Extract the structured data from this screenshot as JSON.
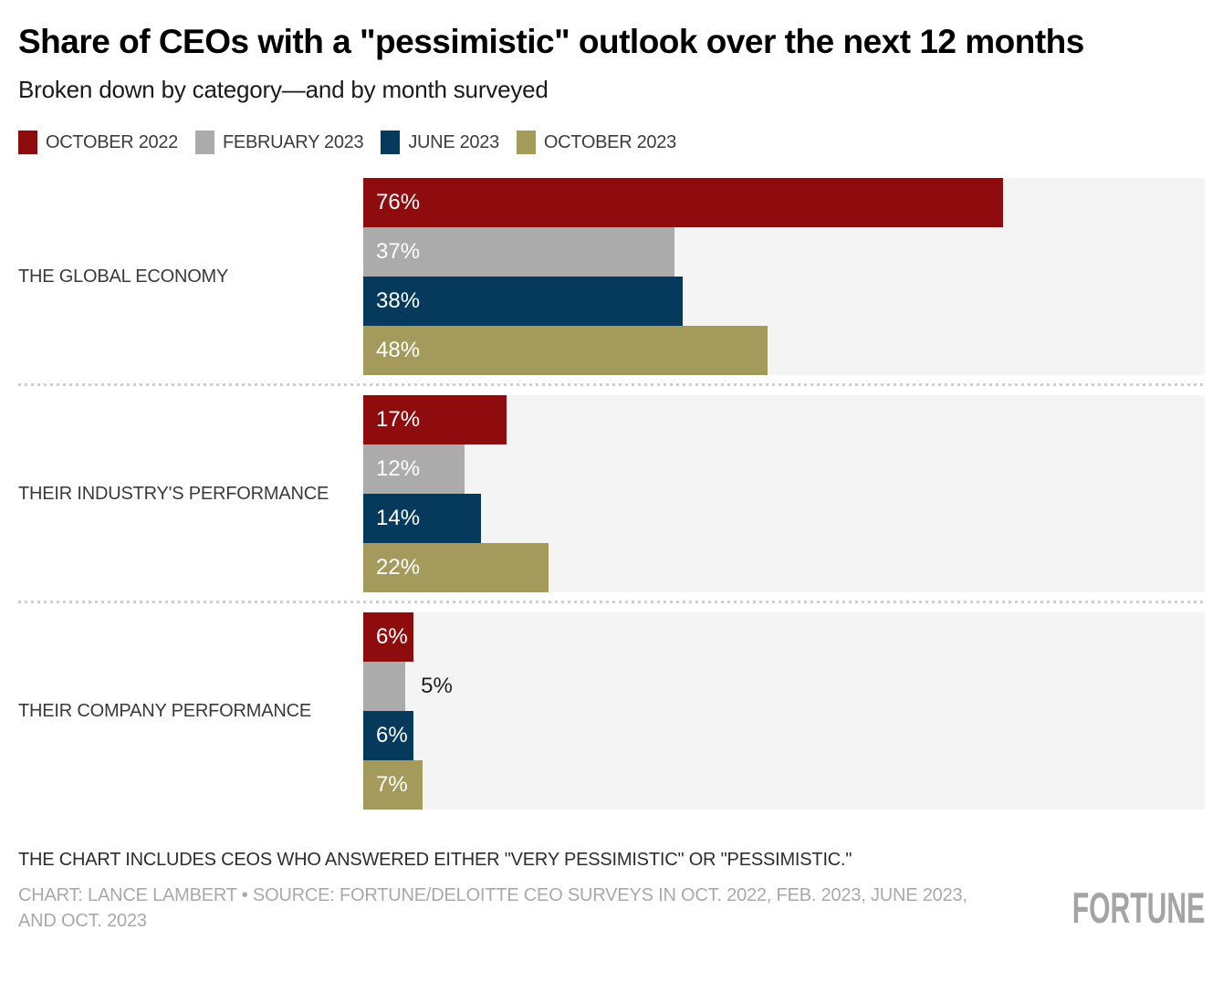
{
  "header": {
    "title": "Share of CEOs with a \"pessimistic\" outlook over the next 12 months",
    "subtitle": "Broken down by category—and by month surveyed"
  },
  "chart_data": {
    "type": "bar",
    "orientation": "horizontal",
    "unit": "%",
    "xlim": [
      0,
      100
    ],
    "grid": false,
    "legend_position": "top",
    "plot_background": "#f4f4f4",
    "categories": [
      "THE GLOBAL ECONOMY",
      "THEIR INDUSTRY'S PERFORMANCE",
      "THEIR COMPANY PERFORMANCE"
    ],
    "series": [
      {
        "name": "OCTOBER 2022",
        "color": "#8e0b0e",
        "values": [
          76,
          17,
          6
        ]
      },
      {
        "name": "FEBRUARY 2023",
        "color": "#ababab",
        "values": [
          37,
          12,
          5
        ]
      },
      {
        "name": "JUNE 2023",
        "color": "#053a5c",
        "values": [
          38,
          14,
          6
        ]
      },
      {
        "name": "OCTOBER 2023",
        "color": "#a49a5c",
        "values": [
          48,
          22,
          7
        ]
      }
    ]
  },
  "footer": {
    "note": "THE CHART INCLUDES CEOS WHO ANSWERED EITHER \"VERY PESSIMISTIC\" OR \"PESSIMISTIC.\"",
    "credit": "CHART: LANCE LAMBERT • SOURCE: FORTUNE/DELOITTE CEO SURVEYS IN OCT. 2022, FEB. 2023, JUNE 2023, AND OCT. 2023",
    "logo": "FORTUNE"
  }
}
